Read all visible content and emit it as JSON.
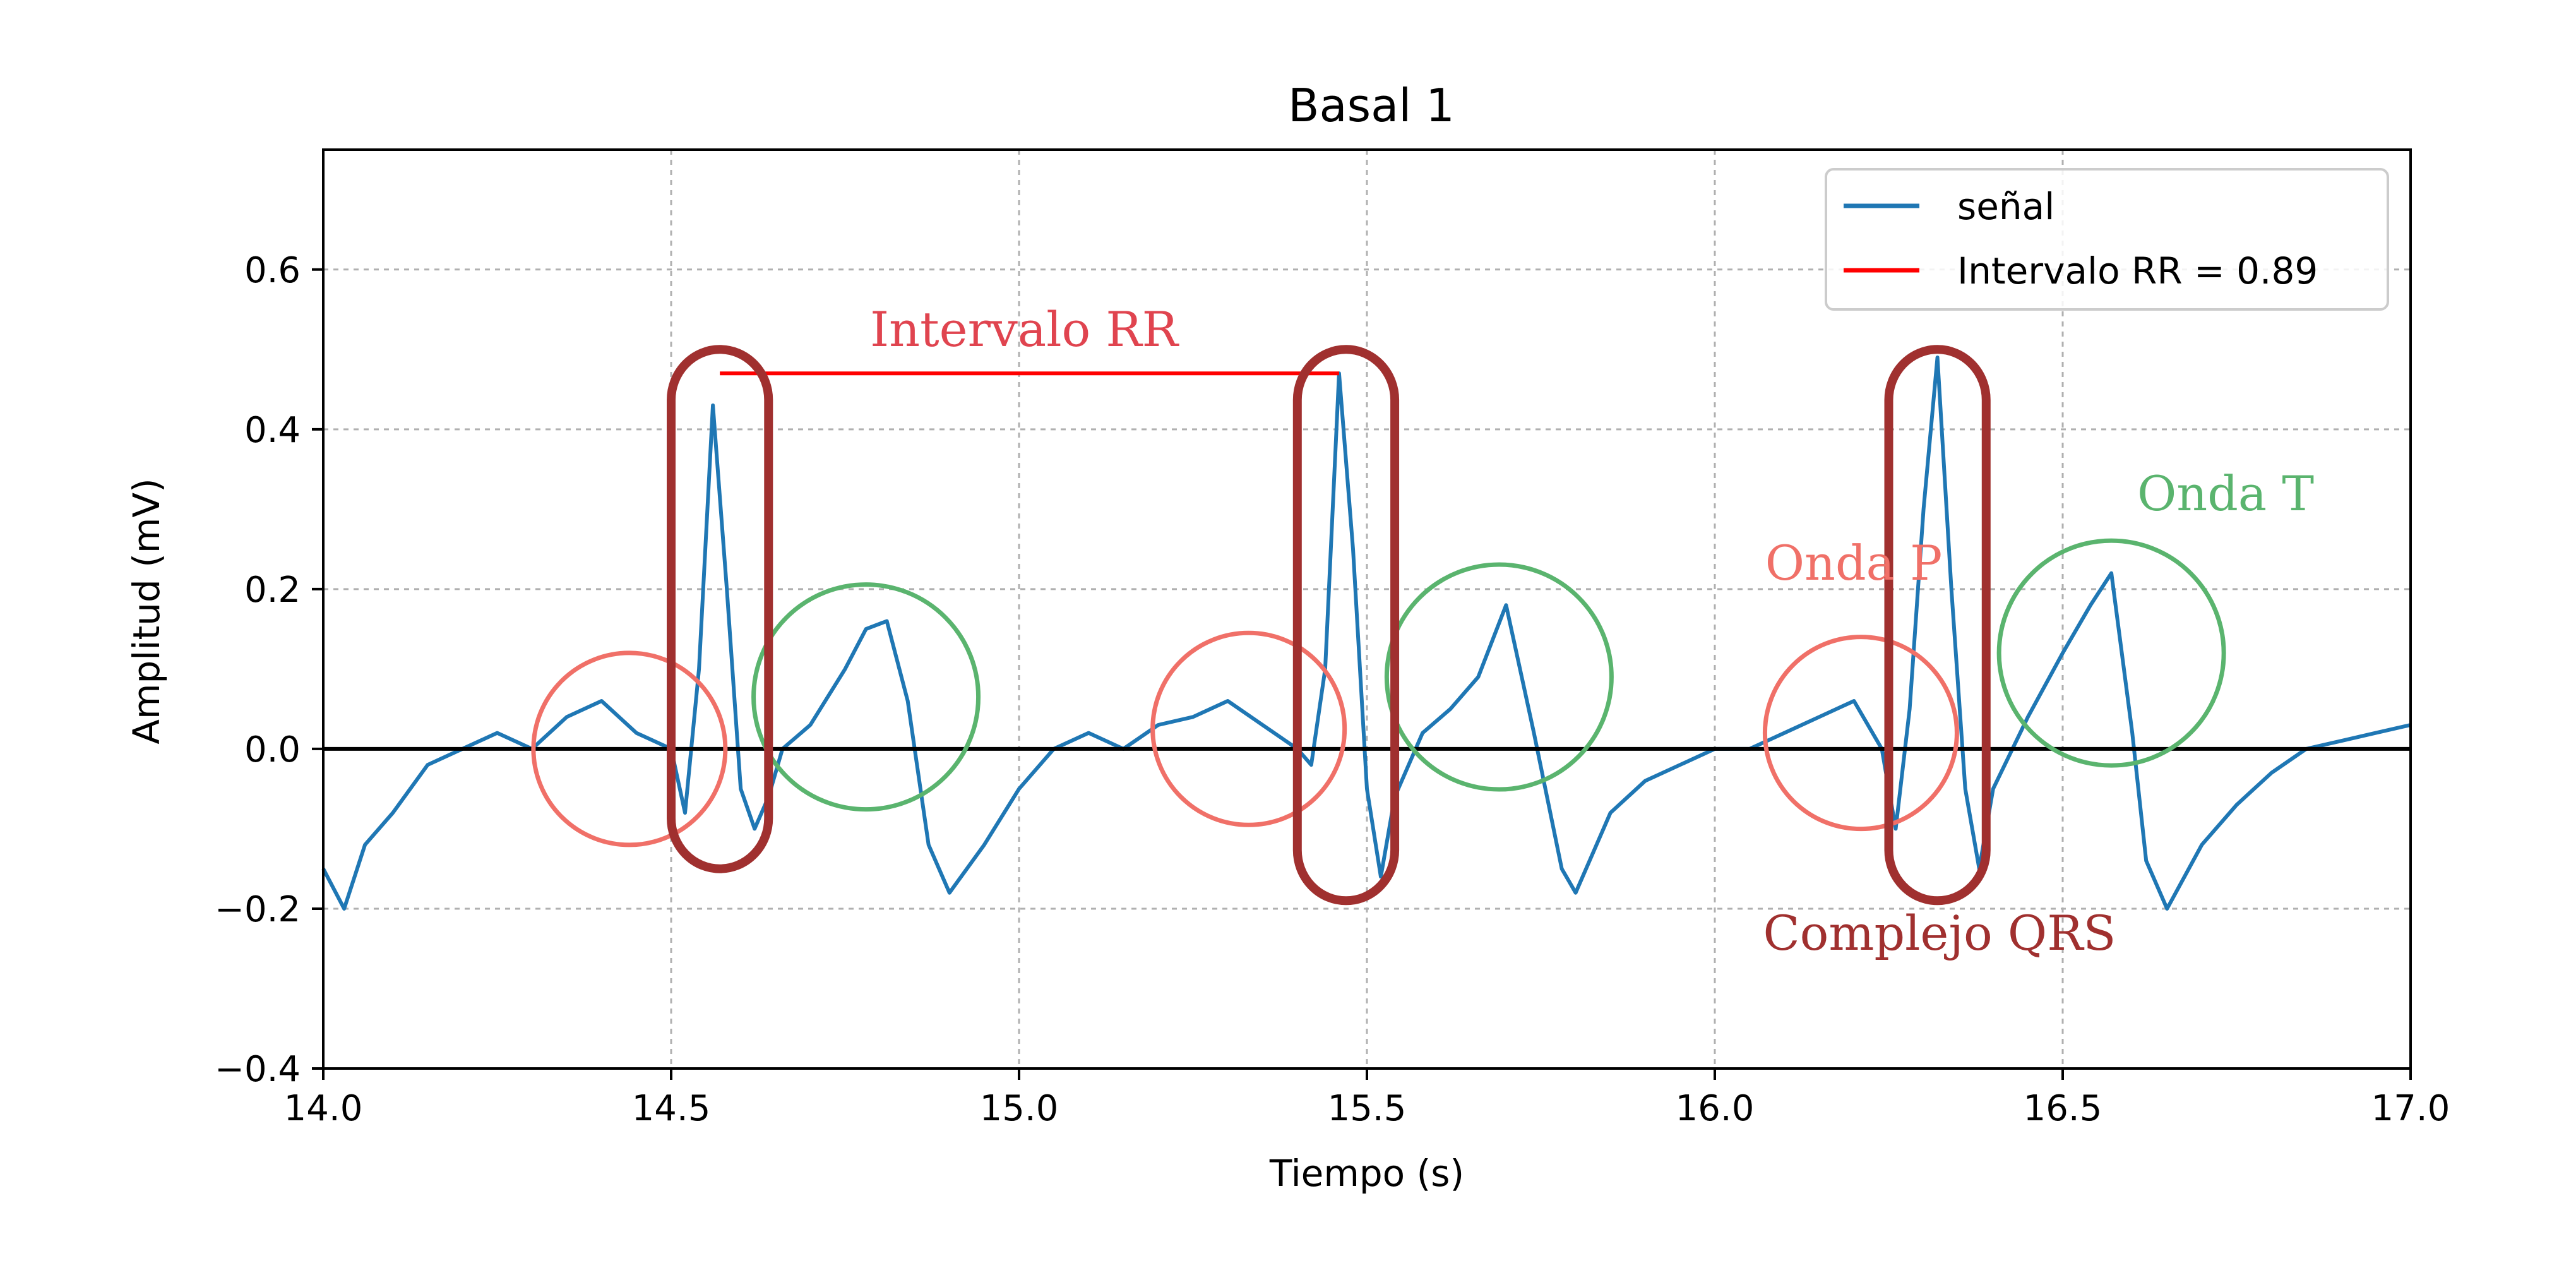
{
  "chart_data": {
    "type": "line",
    "title": "Basal 1",
    "xlabel": "Tiempo (s)",
    "ylabel": "Amplitud (mV)",
    "xlim": [
      14.0,
      17.0
    ],
    "ylim": [
      -0.4,
      0.75
    ],
    "x_ticks": [
      "14.0",
      "14.5",
      "15.0",
      "15.5",
      "16.0",
      "16.5",
      "17.0"
    ],
    "y_ticks": [
      "−0.4",
      "−0.2",
      "0.0",
      "0.2",
      "0.4",
      "0.6"
    ],
    "x_tick_values": [
      14.0,
      14.5,
      15.0,
      15.5,
      16.0,
      16.5,
      17.0
    ],
    "y_tick_values": [
      -0.4,
      -0.2,
      0.0,
      0.2,
      0.4,
      0.6
    ],
    "grid": true,
    "legend_position": "top-right",
    "series": [
      {
        "name": "señal",
        "color": "#1f77b4",
        "x": [
          14.0,
          14.03,
          14.06,
          14.1,
          14.15,
          14.2,
          14.25,
          14.3,
          14.35,
          14.4,
          14.45,
          14.5,
          14.52,
          14.54,
          14.56,
          14.58,
          14.6,
          14.62,
          14.64,
          14.66,
          14.7,
          14.75,
          14.78,
          14.81,
          14.84,
          14.87,
          14.9,
          14.95,
          15.0,
          15.05,
          15.1,
          15.15,
          15.2,
          15.25,
          15.3,
          15.35,
          15.4,
          15.42,
          15.44,
          15.46,
          15.48,
          15.5,
          15.52,
          15.54,
          15.58,
          15.62,
          15.66,
          15.7,
          15.74,
          15.78,
          15.8,
          15.85,
          15.9,
          15.95,
          16.0,
          16.05,
          16.1,
          16.15,
          16.2,
          16.24,
          16.26,
          16.28,
          16.3,
          16.32,
          16.34,
          16.36,
          16.38,
          16.4,
          16.45,
          16.5,
          16.54,
          16.57,
          16.6,
          16.62,
          16.65,
          16.7,
          16.75,
          16.8,
          16.85,
          16.9,
          16.95,
          17.0
        ],
        "y": [
          -0.15,
          -0.2,
          -0.12,
          -0.08,
          -0.02,
          0.0,
          0.02,
          0.0,
          0.04,
          0.06,
          0.02,
          0.0,
          -0.08,
          0.1,
          0.43,
          0.2,
          -0.05,
          -0.1,
          -0.06,
          0.0,
          0.03,
          0.1,
          0.15,
          0.16,
          0.06,
          -0.12,
          -0.18,
          -0.12,
          -0.05,
          0.0,
          0.02,
          0.0,
          0.03,
          0.04,
          0.06,
          0.03,
          0.0,
          -0.02,
          0.1,
          0.47,
          0.25,
          -0.05,
          -0.16,
          -0.06,
          0.02,
          0.05,
          0.09,
          0.18,
          0.02,
          -0.15,
          -0.18,
          -0.08,
          -0.04,
          -0.02,
          0.0,
          0.0,
          0.02,
          0.04,
          0.06,
          0.0,
          -0.1,
          0.05,
          0.3,
          0.49,
          0.2,
          -0.05,
          -0.15,
          -0.05,
          0.04,
          0.12,
          0.18,
          0.22,
          0.02,
          -0.14,
          -0.2,
          -0.12,
          -0.07,
          -0.03,
          0.0,
          0.01,
          0.02,
          0.03
        ]
      },
      {
        "name": "Intervalo RR = 0.89",
        "color": "#ff0000",
        "x": [
          14.57,
          15.46
        ],
        "y": [
          0.47,
          0.47
        ]
      }
    ],
    "reference_line": {
      "y": 0.0,
      "color": "#000000"
    },
    "annotations": {
      "rr_label": "Intervalo RR",
      "p_label": "Onda P",
      "t_label": "Onda T",
      "qrs_label": "Complejo QRS",
      "p_color": "#f07068",
      "t_color": "#5ab46e",
      "qrs_color": "#a0302f",
      "rr_color": "#e0444f",
      "p_waves": [
        {
          "x": 14.44,
          "y": 0.0
        },
        {
          "x": 15.33,
          "y": 0.025
        },
        {
          "x": 16.21,
          "y": 0.02
        }
      ],
      "t_waves": [
        {
          "x": 14.78,
          "y": 0.065
        },
        {
          "x": 15.69,
          "y": 0.09
        },
        {
          "x": 16.57,
          "y": 0.12
        }
      ],
      "qrs_complexes": [
        {
          "x0": 14.5,
          "x1": 14.64,
          "y0": -0.15,
          "y1": 0.5
        },
        {
          "x0": 15.4,
          "x1": 15.54,
          "y0": -0.19,
          "y1": 0.5
        },
        {
          "x0": 16.25,
          "x1": 16.39,
          "y0": -0.19,
          "y1": 0.5
        }
      ]
    }
  }
}
